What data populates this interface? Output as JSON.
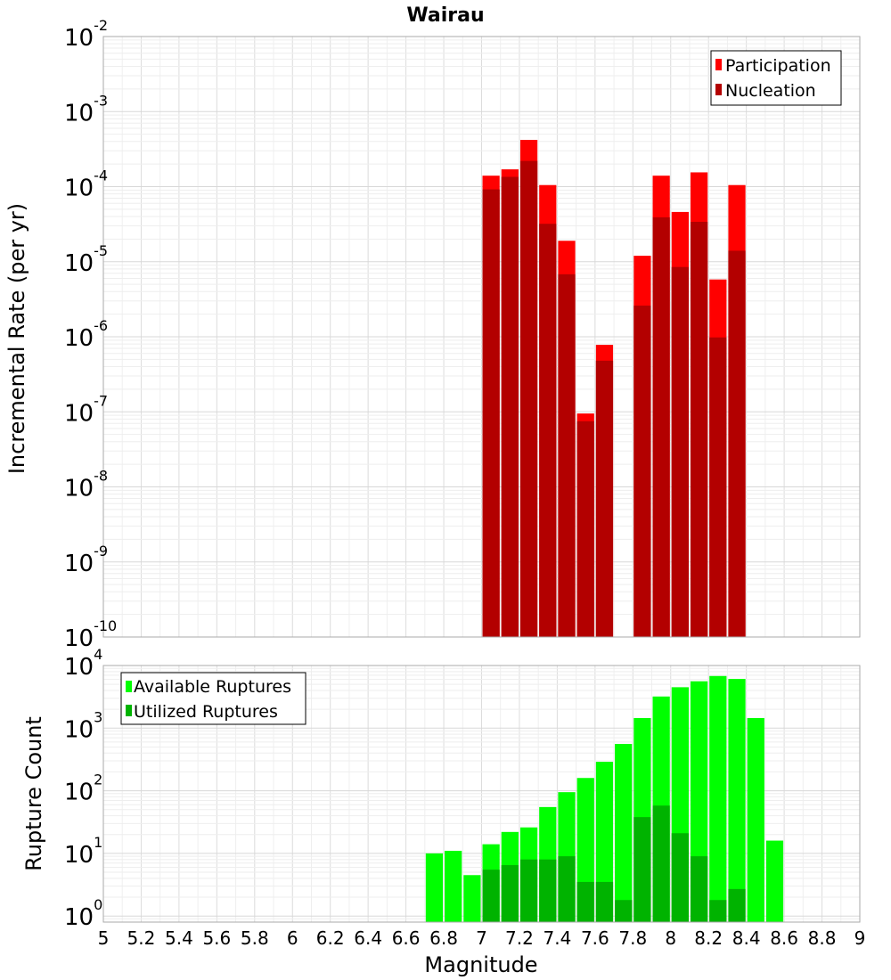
{
  "chart_data": [
    {
      "type": "bar",
      "title": "Wairau",
      "xlabel": "",
      "ylabel": "Incremental Rate (per yr)",
      "yscale": "log",
      "ylim": [
        1e-10,
        0.01
      ],
      "xlim": [
        5,
        9
      ],
      "bar_width": 0.1,
      "grid": true,
      "legend_position": "top-right",
      "y_ticks": [
        {
          "base": "10",
          "exp": "-10",
          "value": 1e-10
        },
        {
          "base": "10",
          "exp": "-9",
          "value": 1e-09
        },
        {
          "base": "10",
          "exp": "-8",
          "value": 1e-08
        },
        {
          "base": "10",
          "exp": "-7",
          "value": 1e-07
        },
        {
          "base": "10",
          "exp": "-6",
          "value": 1e-06
        },
        {
          "base": "10",
          "exp": "-5",
          "value": 1e-05
        },
        {
          "base": "10",
          "exp": "-4",
          "value": 0.0001
        },
        {
          "base": "10",
          "exp": "-3",
          "value": 0.001
        },
        {
          "base": "10",
          "exp": "-2",
          "value": 0.01
        }
      ],
      "series": [
        {
          "name": "Participation",
          "color": "#ff0000",
          "x": [
            7.05,
            7.15,
            7.25,
            7.35,
            7.45,
            7.55,
            7.65,
            7.85,
            7.95,
            8.05,
            8.15,
            8.25,
            8.35
          ],
          "values": [
            0.00014,
            0.00017,
            0.00042,
            0.000105,
            1.9e-05,
            9.5e-08,
            7.8e-07,
            1.2e-05,
            0.00014,
            4.6e-05,
            0.000155,
            5.8e-06,
            0.000105
          ]
        },
        {
          "name": "Nucleation",
          "color": "#b30000",
          "x": [
            7.05,
            7.15,
            7.25,
            7.35,
            7.45,
            7.55,
            7.65,
            7.85,
            7.95,
            8.05,
            8.15,
            8.25,
            8.35
          ],
          "values": [
            9.2e-05,
            0.000135,
            0.00022,
            3.2e-05,
            6.8e-06,
            7.5e-08,
            4.8e-07,
            2.6e-06,
            3.9e-05,
            8.5e-06,
            3.4e-05,
            9.8e-07,
            1.4e-05
          ]
        }
      ]
    },
    {
      "type": "bar",
      "title": "",
      "xlabel": "Magnitude",
      "ylabel": "Rupture Count",
      "yscale": "log",
      "ylim": [
        0.8,
        10000
      ],
      "xlim": [
        5,
        9
      ],
      "bar_width": 0.1,
      "grid": true,
      "legend_position": "top-left",
      "x_ticks": [
        "5",
        "5.2",
        "5.4",
        "5.6",
        "5.8",
        "6",
        "6.2",
        "6.4",
        "6.6",
        "6.8",
        "7",
        "7.2",
        "7.4",
        "7.6",
        "7.8",
        "8",
        "8.2",
        "8.4",
        "8.6",
        "8.8",
        "9"
      ],
      "y_ticks": [
        {
          "base": "10",
          "exp": "0",
          "value": 1
        },
        {
          "base": "10",
          "exp": "1",
          "value": 10
        },
        {
          "base": "10",
          "exp": "2",
          "value": 100
        },
        {
          "base": "10",
          "exp": "3",
          "value": 1000
        },
        {
          "base": "10",
          "exp": "4",
          "value": 10000
        }
      ],
      "series": [
        {
          "name": "Available Ruptures",
          "color": "#00ff00",
          "x": [
            6.75,
            6.85,
            6.95,
            7.05,
            7.15,
            7.25,
            7.35,
            7.45,
            7.55,
            7.65,
            7.75,
            7.85,
            7.95,
            8.05,
            8.15,
            8.25,
            8.35,
            8.45,
            8.55
          ],
          "values": [
            10,
            11,
            4.5,
            14,
            22,
            26,
            55,
            95,
            160,
            290,
            560,
            1450,
            3200,
            4500,
            5600,
            6800,
            6100,
            1450,
            16
          ]
        },
        {
          "name": "Utilized Ruptures",
          "color": "#00b300",
          "x": [
            7.05,
            7.15,
            7.25,
            7.35,
            7.45,
            7.55,
            7.65,
            7.75,
            7.85,
            7.95,
            8.05,
            8.15,
            8.25,
            8.35
          ],
          "values": [
            5.5,
            6.5,
            8,
            8,
            9,
            3.5,
            3.5,
            1.8,
            38,
            58,
            21,
            9,
            1.8,
            2.7
          ]
        }
      ]
    }
  ]
}
